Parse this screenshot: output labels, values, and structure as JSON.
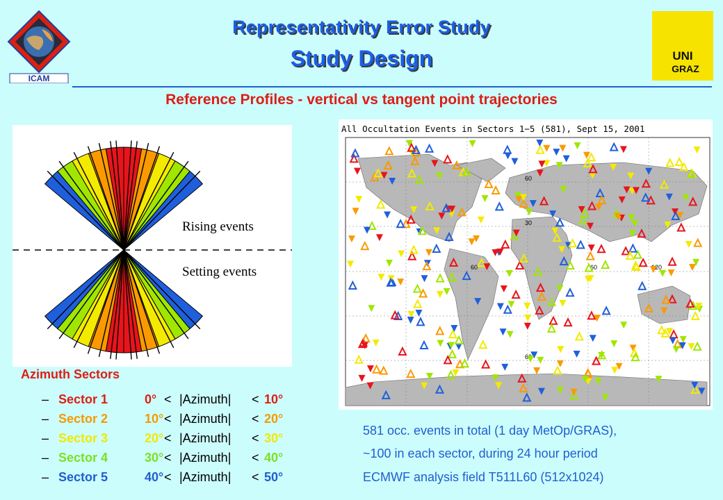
{
  "header": {
    "title": "Representativity Error Study",
    "subtitle": "Study Design",
    "left_logo_text": "ICAM",
    "right_logo_text": [
      "UNI",
      "GRAZ"
    ]
  },
  "section_title": "Reference Profiles - vertical vs tangent point trajectories",
  "diagram": {
    "rising_label": "Rising events",
    "setting_label": "Setting events",
    "sector_colors": [
      "#e8141b",
      "#fa9a00",
      "#f3ea00",
      "#a0e600",
      "#1f5fdc"
    ]
  },
  "map": {
    "title": "All Occultation Events in Sectors 1−5 (581), Sept 15, 2001",
    "lat_labels": [
      "60",
      "30",
      "60"
    ],
    "lon_labels": [
      "60",
      "60",
      "120"
    ]
  },
  "azimuth": {
    "heading": "Azimuth Sectors",
    "sectors": [
      {
        "name": "Sector 1",
        "low": "0°",
        "high": "10°",
        "color": "#dc1e14"
      },
      {
        "name": "Sector 2",
        "low": "10°",
        "high": "20°",
        "color": "#f49a00"
      },
      {
        "name": "Sector 3",
        "low": "20°",
        "high": "30°",
        "color": "#f0e800"
      },
      {
        "name": "Sector 4",
        "low": "30°",
        "high": "40°",
        "color": "#7ee020"
      },
      {
        "name": "Sector 5",
        "low": "40°",
        "high": "50°",
        "color": "#1f5fcf"
      }
    ],
    "lt": "<",
    "azimuth_text": "|Azimuth|",
    "dash": "–"
  },
  "info_lines": [
    "581 occ. events in total (1 day MetOp/GRAS),",
    "~100 in each sector, during 24 hour period",
    "ECMWF analysis field T511L60 (512x1024)"
  ]
}
